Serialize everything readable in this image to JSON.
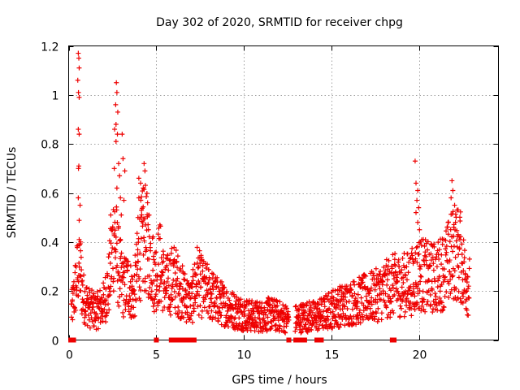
{
  "chart_data": {
    "type": "scatter",
    "title": "Day 302 of 2020, SRMTID for receiver chpg",
    "xlabel": "GPS time / hours",
    "ylabel": "SRMTID / TECUs",
    "xlim": [
      0,
      24.5
    ],
    "ylim": [
      0,
      1.2
    ],
    "xticks": [
      0,
      5,
      10,
      15,
      20
    ],
    "xtick_labels": [
      "0",
      "5",
      "10",
      "15",
      "20"
    ],
    "yticks": [
      0,
      0.2,
      0.4,
      0.6,
      0.8,
      1.0,
      1.2
    ],
    "ytick_labels": [
      "0",
      "0.2",
      "0.4",
      "0.6",
      "0.8",
      "1",
      "1.2"
    ],
    "grid": true,
    "marker": "plus",
    "marker_color": "#ee0000",
    "profile": {
      "x": [
        0.0,
        0.2,
        0.6,
        0.8,
        1.2,
        1.6,
        2.0,
        2.3,
        2.6,
        2.8,
        3.1,
        3.4,
        3.7,
        4.0,
        4.3,
        4.6,
        4.9,
        5.2,
        5.5,
        6.0,
        6.5,
        7.0,
        7.3,
        7.6,
        8.0,
        8.5,
        9.0,
        9.5,
        10.0,
        10.5,
        11.0,
        11.5,
        12.0,
        12.5,
        13.0,
        13.5,
        14.0,
        14.5,
        15.0,
        15.5,
        16.0,
        16.5,
        17.0,
        17.5,
        18.0,
        18.5,
        19.0,
        19.5,
        20.0,
        20.5,
        21.0,
        21.5,
        22.0,
        22.3,
        22.6,
        22.9
      ],
      "y": [
        0.1,
        0.12,
        0.3,
        0.17,
        0.12,
        0.11,
        0.14,
        0.22,
        0.42,
        0.3,
        0.2,
        0.22,
        0.16,
        0.32,
        0.4,
        0.34,
        0.24,
        0.3,
        0.2,
        0.24,
        0.18,
        0.14,
        0.24,
        0.2,
        0.18,
        0.15,
        0.13,
        0.11,
        0.1,
        0.09,
        0.09,
        0.1,
        0.09,
        0.08,
        0.08,
        0.09,
        0.09,
        0.1,
        0.12,
        0.13,
        0.14,
        0.15,
        0.16,
        0.17,
        0.19,
        0.21,
        0.21,
        0.22,
        0.26,
        0.24,
        0.24,
        0.28,
        0.34,
        0.33,
        0.24,
        0.2
      ]
    },
    "spikes": [
      {
        "x": 0.55,
        "y": 1.17
      },
      {
        "x": 0.58,
        "y": 1.15
      },
      {
        "x": 0.6,
        "y": 1.11
      },
      {
        "x": 0.52,
        "y": 1.06
      },
      {
        "x": 0.56,
        "y": 1.01
      },
      {
        "x": 0.6,
        "y": 0.99
      },
      {
        "x": 0.55,
        "y": 0.86
      },
      {
        "x": 0.6,
        "y": 0.84
      },
      {
        "x": 0.58,
        "y": 0.71
      },
      {
        "x": 0.56,
        "y": 0.7
      },
      {
        "x": 0.55,
        "y": 0.58
      },
      {
        "x": 0.65,
        "y": 0.55
      },
      {
        "x": 0.6,
        "y": 0.41
      },
      {
        "x": 0.68,
        "y": 0.4
      },
      {
        "x": 2.72,
        "y": 1.05
      },
      {
        "x": 2.75,
        "y": 1.01
      },
      {
        "x": 2.68,
        "y": 0.96
      },
      {
        "x": 2.8,
        "y": 0.93
      },
      {
        "x": 2.7,
        "y": 0.88
      },
      {
        "x": 2.62,
        "y": 0.86
      },
      {
        "x": 2.78,
        "y": 0.84
      },
      {
        "x": 2.7,
        "y": 0.81
      },
      {
        "x": 3.05,
        "y": 0.84
      },
      {
        "x": 3.1,
        "y": 0.74
      },
      {
        "x": 2.85,
        "y": 0.72
      },
      {
        "x": 2.6,
        "y": 0.7
      },
      {
        "x": 2.9,
        "y": 0.67
      },
      {
        "x": 3.2,
        "y": 0.69
      },
      {
        "x": 2.75,
        "y": 0.62
      },
      {
        "x": 2.95,
        "y": 0.58
      },
      {
        "x": 3.15,
        "y": 0.57
      },
      {
        "x": 3.0,
        "y": 0.51
      },
      {
        "x": 2.4,
        "y": 0.51
      },
      {
        "x": 2.5,
        "y": 0.45
      },
      {
        "x": 4.0,
        "y": 0.66
      },
      {
        "x": 4.3,
        "y": 0.72
      },
      {
        "x": 4.35,
        "y": 0.69
      },
      {
        "x": 4.1,
        "y": 0.64
      },
      {
        "x": 4.25,
        "y": 0.62
      },
      {
        "x": 4.0,
        "y": 0.58
      },
      {
        "x": 4.5,
        "y": 0.56
      },
      {
        "x": 4.15,
        "y": 0.53
      },
      {
        "x": 3.95,
        "y": 0.5
      },
      {
        "x": 4.4,
        "y": 0.47
      },
      {
        "x": 4.55,
        "y": 0.45
      },
      {
        "x": 19.75,
        "y": 0.73
      },
      {
        "x": 19.8,
        "y": 0.64
      },
      {
        "x": 19.9,
        "y": 0.61
      },
      {
        "x": 19.85,
        "y": 0.57
      },
      {
        "x": 19.95,
        "y": 0.54
      },
      {
        "x": 19.8,
        "y": 0.52
      },
      {
        "x": 19.9,
        "y": 0.48
      },
      {
        "x": 20.0,
        "y": 0.45
      },
      {
        "x": 21.85,
        "y": 0.65
      },
      {
        "x": 21.9,
        "y": 0.61
      },
      {
        "x": 21.8,
        "y": 0.58
      },
      {
        "x": 22.0,
        "y": 0.55
      },
      {
        "x": 22.05,
        "y": 0.48
      },
      {
        "x": 21.95,
        "y": 0.46
      },
      {
        "x": 22.2,
        "y": 0.43
      },
      {
        "x": 22.3,
        "y": 0.41
      }
    ],
    "zero_value_x": [
      0.12,
      0.2,
      0.28,
      5.0,
      5.85,
      6.05,
      6.3,
      6.5,
      6.68,
      6.9,
      7.15,
      12.55,
      12.95,
      13.2,
      13.45,
      14.15,
      14.4,
      18.45,
      18.55
    ]
  }
}
